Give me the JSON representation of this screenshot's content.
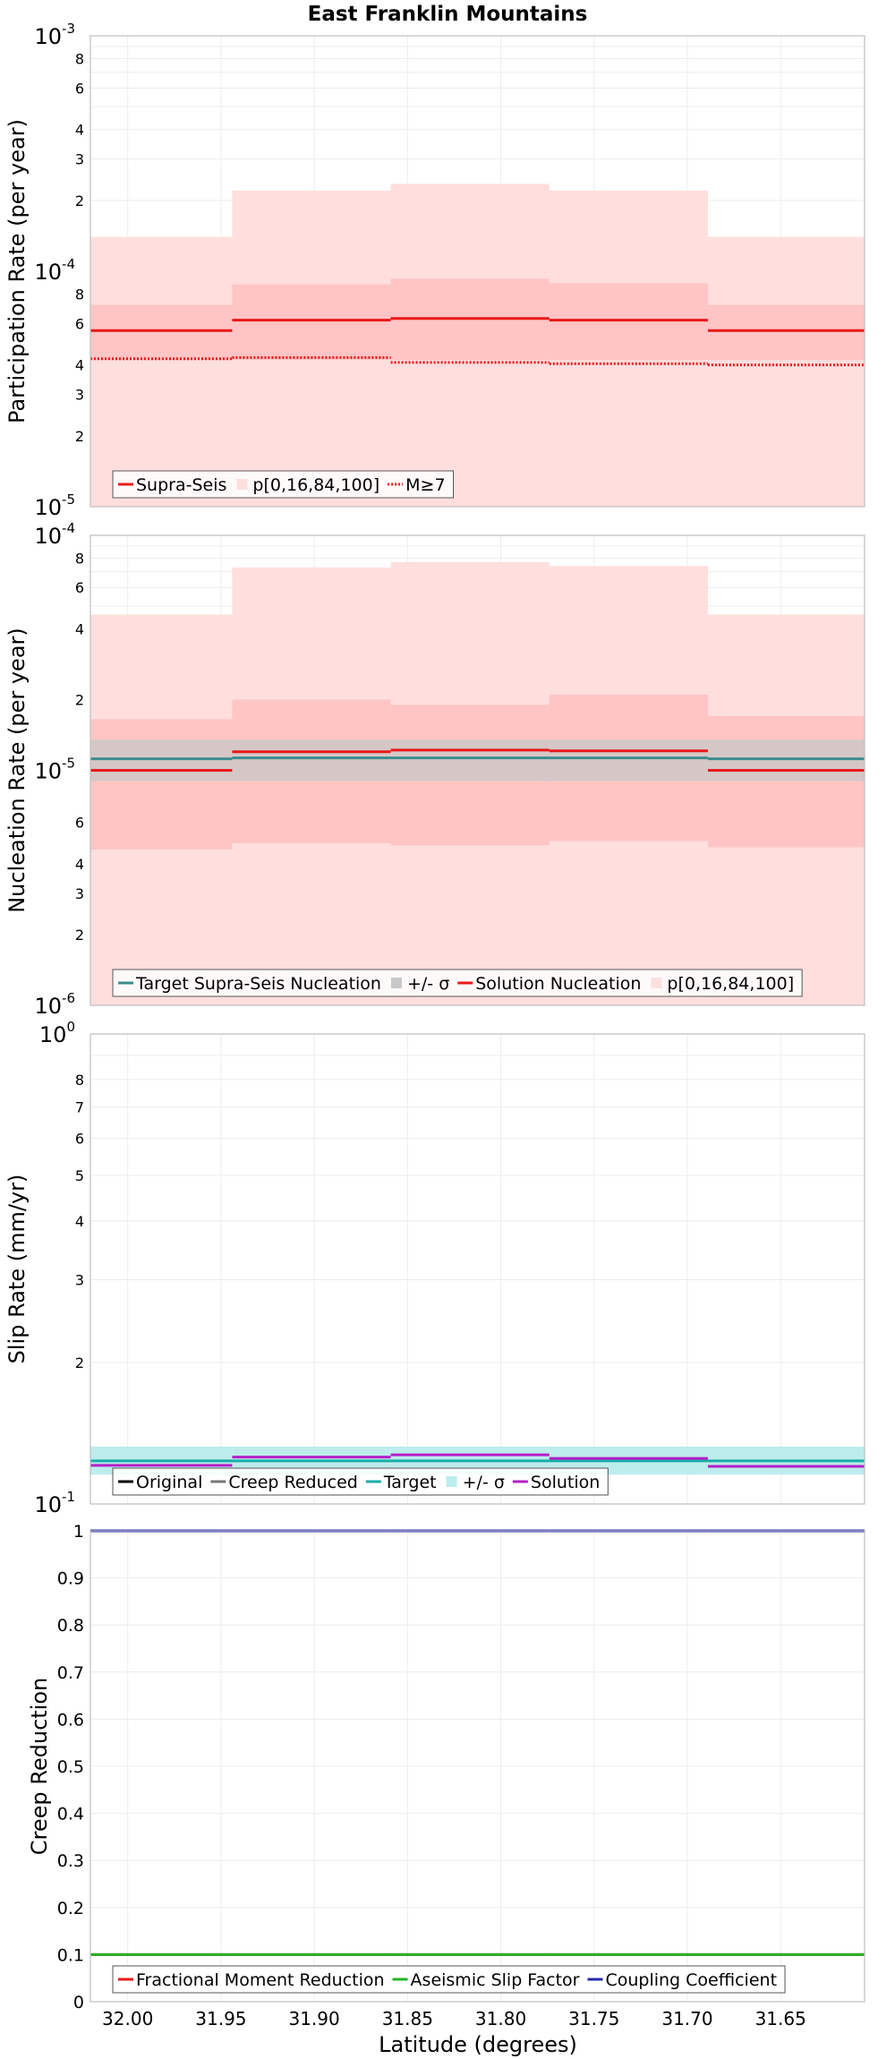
{
  "title": "East Franklin Mountains",
  "x_axis": {
    "label": "Latitude (degrees)",
    "range": [
      32.02,
      31.605
    ],
    "reversed": true,
    "ticks": [
      32.0,
      31.95,
      31.9,
      31.85,
      31.8,
      31.75,
      31.7,
      31.65
    ],
    "tick_labels": [
      "32.00",
      "31.95",
      "31.90",
      "31.85",
      "31.80",
      "31.75",
      "31.70",
      "31.65"
    ]
  },
  "subsections": [
    {
      "from": 32.02,
      "to": 31.944
    },
    {
      "from": 31.944,
      "to": 31.859
    },
    {
      "from": 31.859,
      "to": 31.774
    },
    {
      "from": 31.774,
      "to": 31.689
    },
    {
      "from": 31.689,
      "to": 31.605
    }
  ],
  "chart_data": [
    {
      "id": "participation",
      "type": "line",
      "step": true,
      "ylabel": "Participation Rate (per year)",
      "yscale": "log",
      "ylim": [
        1e-05,
        0.001
      ],
      "decade_labels": [
        {
          "base": "10",
          "exp": "-5",
          "value": 1e-05
        },
        {
          "base": "10",
          "exp": "-4",
          "value": 0.0001
        },
        {
          "base": "10",
          "exp": "-3",
          "value": 0.001
        }
      ],
      "minor_labels": [
        {
          "label": "2",
          "value": 2e-05
        },
        {
          "label": "3",
          "value": 3e-05
        },
        {
          "label": "4",
          "value": 4e-05
        },
        {
          "label": "6",
          "value": 6e-05
        },
        {
          "label": "8",
          "value": 8e-05
        },
        {
          "label": "2",
          "value": 0.0002
        },
        {
          "label": "3",
          "value": 0.0003
        },
        {
          "label": "4",
          "value": 0.0004
        },
        {
          "label": "6",
          "value": 0.0006
        },
        {
          "label": "8",
          "value": 0.0008
        }
      ],
      "bands": [
        {
          "name": "p[0,16,84,100]",
          "color": "#ffdede",
          "lo": [
            1e-05,
            1e-05,
            1e-05,
            1e-05,
            1e-05
          ],
          "hi": [
            0.00014,
            0.00022,
            0.000235,
            0.00022,
            0.00014
          ]
        },
        {
          "name": "p16-84",
          "color": "#ffc4c4",
          "lo": [
            4.2e-05,
            4.2e-05,
            4.2e-05,
            4.2e-05,
            4.2e-05
          ],
          "hi": [
            7.2e-05,
            8.8e-05,
            9.3e-05,
            8.9e-05,
            7.2e-05
          ]
        }
      ],
      "series": [
        {
          "name": "Supra-Seis",
          "color": "#e8191a",
          "dash": "",
          "values": [
            5.6e-05,
            6.2e-05,
            6.3e-05,
            6.2e-05,
            5.6e-05
          ]
        },
        {
          "name": "M≥7",
          "color": "#e8191a",
          "dash": "2,2",
          "values": [
            4.25e-05,
            4.3e-05,
            4.1e-05,
            4.05e-05,
            4e-05
          ]
        }
      ],
      "legend": [
        {
          "type": "line",
          "label": "Supra-Seis",
          "color": "#e8191a",
          "dash": ""
        },
        {
          "type": "box",
          "label": "p[0,16,84,100]",
          "color": "#ffdede"
        },
        {
          "type": "line",
          "label": "M≥7",
          "color": "#e8191a",
          "dash": "2,2"
        }
      ],
      "legend_position": "bottom-left"
    },
    {
      "id": "nucleation",
      "type": "line",
      "step": true,
      "ylabel": "Nucleation Rate (per year)",
      "yscale": "log",
      "ylim": [
        1e-06,
        0.0001
      ],
      "decade_labels": [
        {
          "base": "10",
          "exp": "-6",
          "value": 1e-06
        },
        {
          "base": "10",
          "exp": "-5",
          "value": 1e-05
        },
        {
          "base": "10",
          "exp": "-4",
          "value": 0.0001
        }
      ],
      "minor_labels": [
        {
          "label": "2",
          "value": 2e-06
        },
        {
          "label": "3",
          "value": 3e-06
        },
        {
          "label": "4",
          "value": 4e-06
        },
        {
          "label": "6",
          "value": 6e-06
        },
        {
          "label": "2",
          "value": 2e-05
        },
        {
          "label": "4",
          "value": 4e-05
        },
        {
          "label": "6",
          "value": 6e-05
        },
        {
          "label": "8",
          "value": 8e-05
        }
      ],
      "bands": [
        {
          "name": "p[0,16,84,100]",
          "color": "#ffdede",
          "lo": [
            1e-06,
            1e-06,
            1e-06,
            1e-06,
            1e-06
          ],
          "hi": [
            4.6e-05,
            7.3e-05,
            7.7e-05,
            7.4e-05,
            4.6e-05
          ]
        },
        {
          "name": "p16-84",
          "color": "#ffc4c4",
          "lo": [
            4.6e-06,
            4.9e-06,
            4.8e-06,
            5e-06,
            4.7e-06
          ],
          "hi": [
            1.65e-05,
            2e-05,
            1.9e-05,
            2.1e-05,
            1.7e-05
          ]
        },
        {
          "name": "+/- σ",
          "color": "#c8c8c8",
          "lo": [
            9e-06,
            9e-06,
            9e-06,
            9e-06,
            9e-06
          ],
          "hi": [
            1.35e-05,
            1.35e-05,
            1.35e-05,
            1.35e-05,
            1.35e-05
          ]
        }
      ],
      "series": [
        {
          "name": "Target Supra-Seis Nucleation",
          "color": "#3c8c8c",
          "dash": "",
          "values": [
            1.12e-05,
            1.13e-05,
            1.13e-05,
            1.13e-05,
            1.12e-05
          ]
        },
        {
          "name": "Solution Nucleation",
          "color": "#e8191a",
          "dash": "",
          "values": [
            1e-05,
            1.2e-05,
            1.22e-05,
            1.21e-05,
            1e-05
          ]
        }
      ],
      "legend": [
        {
          "type": "line",
          "label": "Target Supra-Seis Nucleation",
          "color": "#3c8c8c",
          "dash": ""
        },
        {
          "type": "box",
          "label": "+/- σ",
          "color": "#c8c8c8"
        },
        {
          "type": "line",
          "label": "Solution Nucleation",
          "color": "#e8191a",
          "dash": ""
        },
        {
          "type": "box",
          "label": "p[0,16,84,100]",
          "color": "#ffdede"
        }
      ],
      "legend_position": "bottom-left"
    },
    {
      "id": "slip",
      "type": "line",
      "step": true,
      "ylabel": "Slip Rate (mm/yr)",
      "yscale": "log",
      "ylim": [
        0.1,
        1.0
      ],
      "decade_labels": [
        {
          "base": "10",
          "exp": "-1",
          "value": 0.1
        },
        {
          "base": "10",
          "exp": "0",
          "value": 1.0
        }
      ],
      "minor_labels": [
        {
          "label": "2",
          "value": 0.2
        },
        {
          "label": "3",
          "value": 0.3
        },
        {
          "label": "4",
          "value": 0.4
        },
        {
          "label": "5",
          "value": 0.5
        },
        {
          "label": "6",
          "value": 0.6
        },
        {
          "label": "7",
          "value": 0.7
        },
        {
          "label": "8",
          "value": 0.8
        }
      ],
      "bands": [
        {
          "name": "+/- σ",
          "color": "#bdecec",
          "lo": [
            0.1155,
            0.1155,
            0.1155,
            0.1155,
            0.1155
          ],
          "hi": [
            0.1325,
            0.1325,
            0.1325,
            0.1325,
            0.1325
          ]
        }
      ],
      "series": [
        {
          "name": "Target",
          "color": "#1aaea8",
          "dash": "",
          "values": [
            0.1235,
            0.1235,
            0.1235,
            0.1235,
            0.1235
          ]
        },
        {
          "name": "Solution",
          "color": "#b61fc8",
          "dash": "",
          "values": [
            0.1208,
            0.1258,
            0.1272,
            0.125,
            0.1202
          ]
        }
      ],
      "legend": [
        {
          "type": "line",
          "label": "Original",
          "color": "#000000",
          "dash": ""
        },
        {
          "type": "line",
          "label": "Creep Reduced",
          "color": "#777777",
          "dash": ""
        },
        {
          "type": "line",
          "label": "Target",
          "color": "#1aaea8",
          "dash": ""
        },
        {
          "type": "box",
          "label": "+/- σ",
          "color": "#bdecec"
        },
        {
          "type": "line",
          "label": "Solution",
          "color": "#b61fc8",
          "dash": ""
        }
      ],
      "legend_position": "bottom-left"
    },
    {
      "id": "creep",
      "type": "line",
      "step": true,
      "ylabel": "Creep Reduction",
      "yscale": "linear",
      "ylim": [
        0,
        1
      ],
      "ticks": [
        0,
        0.1,
        0.2,
        0.3,
        0.4,
        0.5,
        0.6,
        0.7,
        0.8,
        0.9,
        1
      ],
      "tick_labels": [
        "0",
        "0.1",
        "0.2",
        "0.3",
        "0.4",
        "0.5",
        "0.6",
        "0.7",
        "0.8",
        "0.9",
        "1"
      ],
      "bands": [],
      "series": [
        {
          "name": "Fractional Moment Reduction",
          "color": "#e8191a",
          "dash": "",
          "values": [
            0.1,
            0.1,
            0.1,
            0.1,
            0.1
          ]
        },
        {
          "name": "Aseismic Slip Factor",
          "color": "#22b422",
          "dash": "",
          "values": [
            0.1,
            0.1,
            0.1,
            0.1,
            0.1
          ]
        },
        {
          "name": "Coupling Coefficient",
          "color": "#2a2ab0",
          "dash": "",
          "values": [
            1.0,
            1.0,
            1.0,
            1.0,
            1.0
          ]
        }
      ],
      "legend": [
        {
          "type": "line",
          "label": "Fractional Moment Reduction",
          "color": "#e8191a",
          "dash": ""
        },
        {
          "type": "line",
          "label": "Aseismic Slip Factor",
          "color": "#22b422",
          "dash": ""
        },
        {
          "type": "line",
          "label": "Coupling Coefficient",
          "color": "#2a2ab0",
          "dash": ""
        }
      ],
      "legend_position": "bottom-left"
    }
  ]
}
